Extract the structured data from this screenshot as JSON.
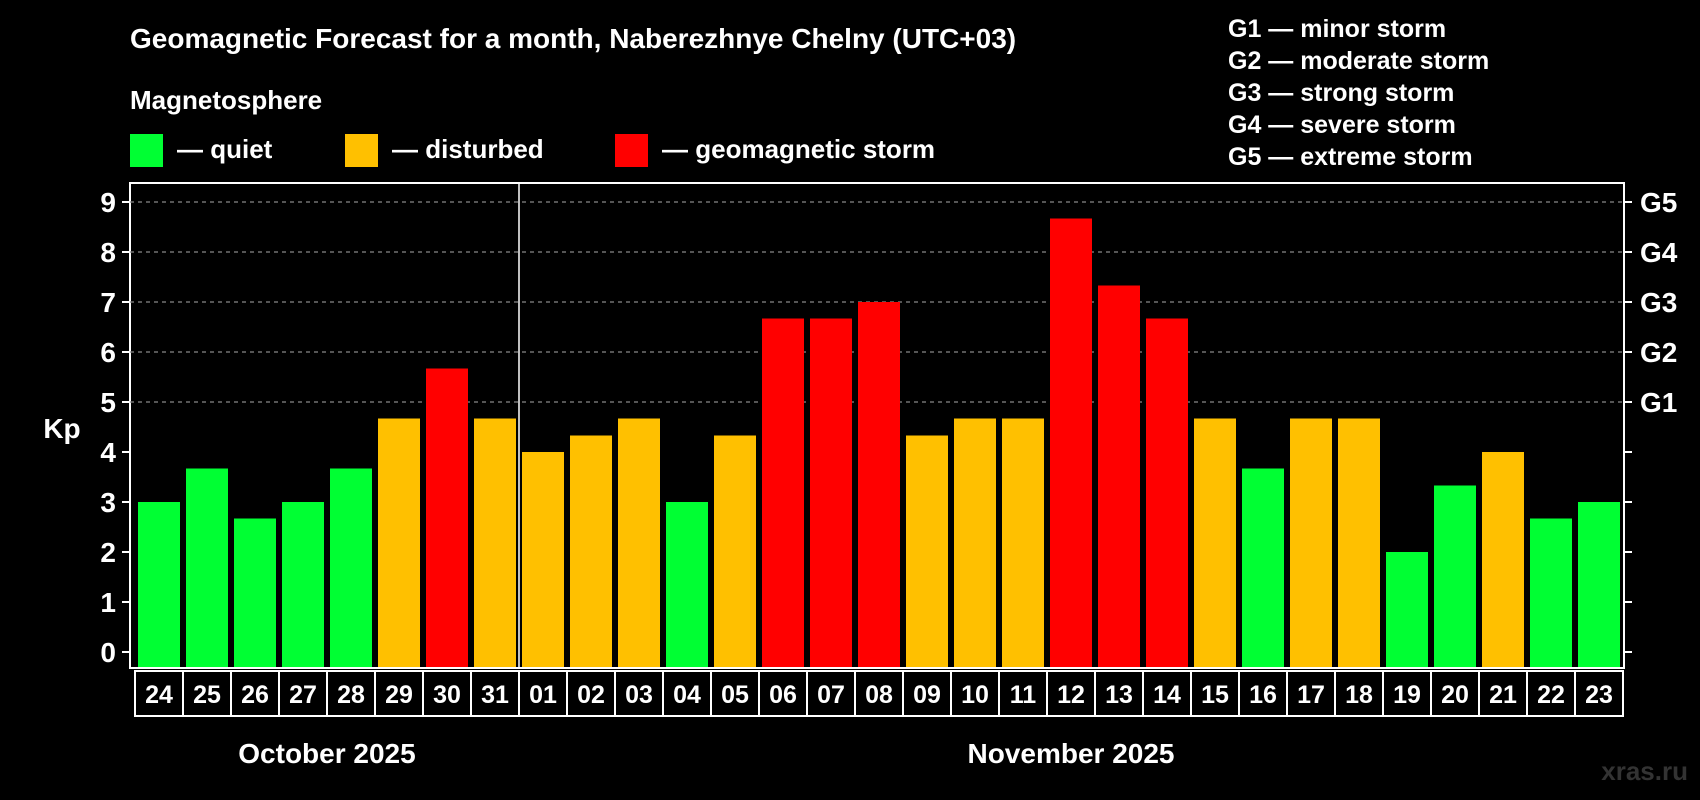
{
  "chart_data": {
    "type": "bar",
    "title": "Geomagnetic Forecast for a month, Naberezhnye Chelny (UTC+03)",
    "legend_heading": "Magnetosphere",
    "legend": [
      {
        "key": "quiet",
        "label": "— quiet",
        "color": "#00ff33"
      },
      {
        "key": "disturbed",
        "label": "— disturbed",
        "color": "#ffc000"
      },
      {
        "key": "storm",
        "label": "— geomagnetic storm",
        "color": "#ff0000"
      }
    ],
    "storm_scale": [
      "G1 — minor storm",
      "G2 — moderate storm",
      "G3 — strong storm",
      "G4 — severe storm",
      "G5 — extreme storm"
    ],
    "ylabel": "Kp",
    "ylim": [
      0,
      9
    ],
    "yticks": [
      "0",
      "1",
      "2",
      "3",
      "4",
      "5",
      "6",
      "7",
      "8",
      "9"
    ],
    "right_axis": [
      {
        "kp": 5,
        "label": "G1"
      },
      {
        "kp": 6,
        "label": "G2"
      },
      {
        "kp": 7,
        "label": "G3"
      },
      {
        "kp": 8,
        "label": "G4"
      },
      {
        "kp": 9,
        "label": "G5"
      }
    ],
    "grid_from_kp": 5,
    "categories": [
      "24",
      "25",
      "26",
      "27",
      "28",
      "29",
      "30",
      "31",
      "01",
      "02",
      "03",
      "04",
      "05",
      "06",
      "07",
      "08",
      "09",
      "10",
      "11",
      "12",
      "13",
      "14",
      "15",
      "16",
      "17",
      "18",
      "19",
      "20",
      "21",
      "22",
      "23"
    ],
    "values": [
      3,
      3.67,
      2.67,
      3,
      3.67,
      4.67,
      5.67,
      4.67,
      4,
      4.33,
      4.67,
      3,
      4.33,
      6.67,
      6.67,
      7,
      4.33,
      4.67,
      4.67,
      8.67,
      7.33,
      6.67,
      4.67,
      3.67,
      4.67,
      4.67,
      2,
      3.33,
      4,
      2.67,
      3
    ],
    "levels": [
      "quiet",
      "quiet",
      "quiet",
      "quiet",
      "quiet",
      "disturbed",
      "storm",
      "disturbed",
      "disturbed",
      "disturbed",
      "disturbed",
      "quiet",
      "disturbed",
      "storm",
      "storm",
      "storm",
      "disturbed",
      "disturbed",
      "disturbed",
      "storm",
      "storm",
      "storm",
      "disturbed",
      "quiet",
      "disturbed",
      "disturbed",
      "quiet",
      "quiet",
      "disturbed",
      "quiet",
      "quiet"
    ],
    "months": [
      {
        "label": "October 2025",
        "start_index": 0,
        "count": 8
      },
      {
        "label": "November 2025",
        "start_index": 8,
        "count": 23
      }
    ]
  },
  "watermark": "xras.ru"
}
